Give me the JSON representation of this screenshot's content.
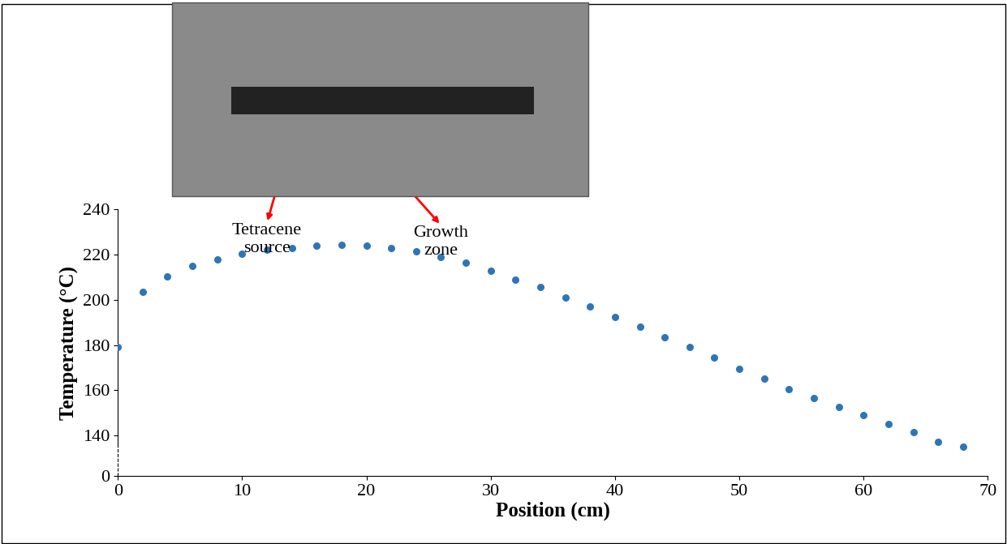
{
  "chart_data": {
    "type": "scatter",
    "x_label": "Position (cm)",
    "y_label": "Temperature (°C)",
    "x": [
      0,
      2,
      4,
      6,
      8,
      10,
      12,
      14,
      16,
      18,
      20,
      22,
      24,
      26,
      28,
      30,
      32,
      34,
      36,
      38,
      40,
      42,
      44,
      46,
      48,
      50,
      52,
      54,
      56,
      58,
      60,
      62,
      64,
      66,
      68
    ],
    "values": [
      179,
      203.5,
      210.5,
      215,
      218,
      220.5,
      222,
      223,
      224,
      224.5,
      224,
      223,
      221.5,
      219,
      216.5,
      213,
      209,
      205.5,
      201,
      197,
      192.5,
      188,
      183.5,
      179,
      174.5,
      169.5,
      165,
      160.5,
      156.5,
      152.5,
      149,
      145,
      141.5,
      137,
      134
    ],
    "color": "#2e75b6",
    "marker": "o",
    "xlim": [
      0,
      70
    ],
    "xticks": [
      0,
      10,
      20,
      30,
      40,
      50,
      60,
      70
    ],
    "ylim": [
      0,
      240
    ],
    "yticks": [
      0,
      140,
      160,
      180,
      200,
      220,
      240
    ],
    "grid": false,
    "annotations": [
      {
        "text": "Tetracene\nsource",
        "x": 12,
        "y": 234
      },
      {
        "text": "Growth\nzone",
        "x": 26,
        "y": 233
      }
    ]
  }
}
